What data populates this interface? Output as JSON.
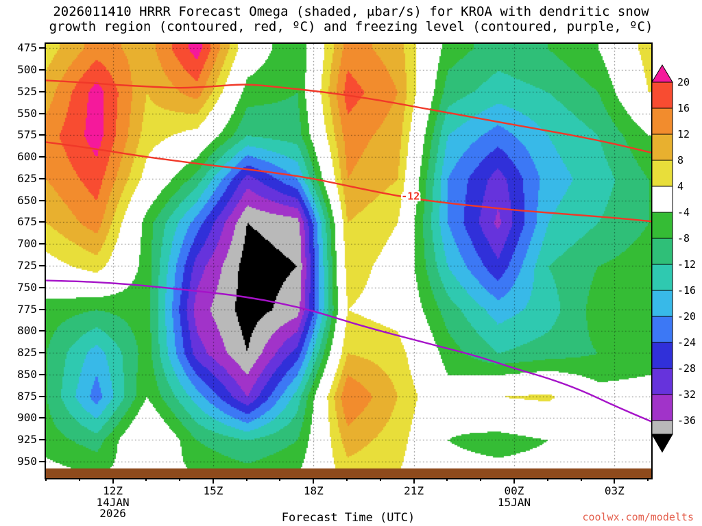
{
  "page": {
    "watermark": "coolwx.com/modelts",
    "watermark_color": "#e4604e"
  },
  "chart_data": {
    "type": "heatmap",
    "title_line1": "2026011410 HRRR Forecast Omega (shaded, μbar/s) for KROA with dendritic snow",
    "title_line2": "growth region (contoured, red, ºC) and freezing level (contoured, purple, ºC)",
    "xlabel": "Forecast Time (UTC)",
    "units": "μbar/s",
    "x_range_hours": [
      10,
      28.1
    ],
    "y_range_hpa": [
      470,
      958
    ],
    "x_ticks": [
      {
        "hour": 12,
        "label": "12Z"
      },
      {
        "hour": 15,
        "label": "15Z"
      },
      {
        "hour": 18,
        "label": "18Z"
      },
      {
        "hour": 21,
        "label": "21Z"
      },
      {
        "hour": 24,
        "label": "00Z"
      },
      {
        "hour": 27,
        "label": "03Z"
      }
    ],
    "x_date_labels": [
      {
        "hour": 12,
        "lines": [
          "14JAN",
          "2026"
        ]
      },
      {
        "hour": 24,
        "lines": [
          "15JAN"
        ]
      }
    ],
    "y_ticks": [
      475,
      500,
      525,
      550,
      575,
      600,
      625,
      650,
      675,
      700,
      725,
      750,
      775,
      800,
      825,
      850,
      875,
      900,
      925,
      950
    ],
    "grid": {
      "hours": [
        10,
        11.5,
        13,
        14.5,
        16,
        17.5,
        19,
        20.5,
        22,
        23.5,
        25,
        26.5,
        28
      ],
      "pressures": [
        475,
        525,
        575,
        625,
        675,
        725,
        775,
        825,
        875,
        925,
        965
      ],
      "omega": [
        [
          6,
          14,
          10,
          22,
          0,
          -8,
          14,
          10,
          -6,
          -10,
          -8,
          -4,
          6
        ],
        [
          10,
          22,
          8,
          14,
          -6,
          -8,
          18,
          12,
          -10,
          -14,
          -12,
          -8,
          4
        ],
        [
          14,
          22,
          6,
          2,
          -12,
          -10,
          14,
          10,
          -16,
          -22,
          -16,
          -12,
          -4
        ],
        [
          12,
          18,
          2,
          -10,
          -30,
          -20,
          12,
          8,
          -20,
          -30,
          -18,
          -14,
          -8
        ],
        [
          8,
          14,
          -6,
          -22,
          -40,
          -38,
          8,
          4,
          -20,
          -33,
          -16,
          -12,
          -8
        ],
        [
          2,
          6,
          -6,
          -30,
          -42,
          -40,
          6,
          2,
          -16,
          -27,
          -12,
          -8,
          -6
        ],
        [
          -6,
          -8,
          -6,
          -34,
          -42,
          -38,
          4,
          2,
          -10,
          -18,
          -14,
          -6,
          -4
        ],
        [
          -8,
          -18,
          -6,
          -30,
          -40,
          -26,
          8,
          6,
          -6,
          -12,
          -10,
          -8,
          -6
        ],
        [
          -8,
          -22,
          -4,
          -18,
          -32,
          -14,
          16,
          8,
          -2,
          4,
          5,
          -2,
          -2
        ],
        [
          -6,
          -10,
          4,
          -8,
          -12,
          -8,
          10,
          6,
          -4,
          -6,
          -4,
          4,
          4
        ],
        [
          -2,
          -4,
          -2,
          -4,
          -6,
          -4,
          6,
          4,
          -2,
          -2,
          -2,
          2,
          2
        ]
      ]
    },
    "color_scale": {
      "levels": [
        -40,
        -36,
        -32,
        -28,
        -24,
        -20,
        -16,
        -12,
        -8,
        -4,
        4,
        8,
        12,
        16,
        20
      ],
      "colors": [
        "#000000",
        "#b9b9b9",
        "#a133c9",
        "#6633dc",
        "#3030d9",
        "#3c78f5",
        "#38b9e8",
        "#2fc9b0",
        "#2fbf78",
        "#35bc35",
        "#ffffff",
        "#e8de3a",
        "#e8b02f",
        "#f28c2d",
        "#f84c31",
        "#f5199b"
      ],
      "bar_labels": [
        20,
        16,
        12,
        8,
        4,
        -4,
        -8,
        -12,
        -16,
        -20,
        -24,
        -28,
        -32,
        -36
      ]
    },
    "contours": [
      {
        "name": "dendritic-growth-upper",
        "value": -18,
        "color": "#f03828",
        "width": 2.4,
        "points": [
          [
            10,
            512
          ],
          [
            11,
            514
          ],
          [
            12,
            517
          ],
          [
            13,
            519
          ],
          [
            14,
            521
          ],
          [
            15,
            519
          ],
          [
            16,
            516
          ],
          [
            17,
            520
          ],
          [
            18,
            524
          ],
          [
            19,
            529
          ],
          [
            20,
            535
          ],
          [
            21,
            542
          ],
          [
            22,
            549
          ],
          [
            23,
            556
          ],
          [
            24,
            563
          ],
          [
            25,
            570
          ],
          [
            26,
            577
          ],
          [
            27,
            585
          ],
          [
            28.1,
            595
          ]
        ]
      },
      {
        "name": "dendritic-growth-lower",
        "value": -12,
        "label": "-12",
        "label_at": [
          20.9,
          645
        ],
        "color": "#f03828",
        "width": 2.4,
        "points": [
          [
            10,
            583
          ],
          [
            11,
            588
          ],
          [
            12,
            594
          ],
          [
            13,
            600
          ],
          [
            14,
            605
          ],
          [
            15,
            610
          ],
          [
            16,
            614
          ],
          [
            17,
            619
          ],
          [
            18,
            625
          ],
          [
            19,
            633
          ],
          [
            20,
            641
          ],
          [
            21,
            648
          ],
          [
            22,
            653
          ],
          [
            23,
            657
          ],
          [
            24,
            661
          ],
          [
            25,
            664
          ],
          [
            26,
            667
          ],
          [
            27,
            670
          ],
          [
            28.1,
            674
          ]
        ]
      },
      {
        "name": "freezing-level",
        "value": 0,
        "color": "#a512c8",
        "width": 2.4,
        "points": [
          [
            10,
            742
          ],
          [
            11,
            743
          ],
          [
            12,
            745
          ],
          [
            13,
            748
          ],
          [
            14,
            752
          ],
          [
            15,
            756
          ],
          [
            16,
            761
          ],
          [
            17,
            768
          ],
          [
            18,
            777
          ],
          [
            19,
            789
          ],
          [
            20,
            800
          ],
          [
            21,
            810
          ],
          [
            22,
            820
          ],
          [
            23,
            830
          ],
          [
            24,
            843
          ],
          [
            25,
            854
          ],
          [
            26,
            868
          ],
          [
            27,
            886
          ],
          [
            28.1,
            904
          ]
        ]
      }
    ],
    "surface_band": {
      "color": "#8e4a1c"
    }
  }
}
